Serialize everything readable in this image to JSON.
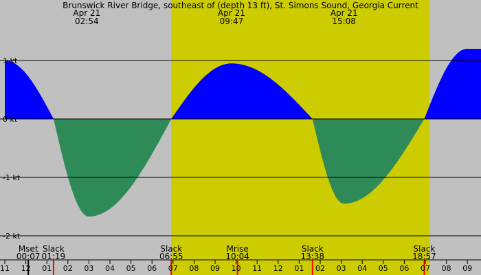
{
  "chart_data": {
    "type": "area",
    "title": "Brunswick River Bridge, southeast of (depth 13 ft), St. Simons Sound, Georgia Current",
    "y_unit": "kt",
    "ylim": [
      -2.05,
      1.05
    ],
    "y_ticks": [
      {
        "value": 1,
        "label": "1 kt"
      },
      {
        "value": 0,
        "label": "0 kt"
      },
      {
        "value": -1,
        "label": "-1 kt"
      },
      {
        "value": -2,
        "label": "-2 kt"
      }
    ],
    "x_axis": {
      "unit": "hour of day",
      "start": 23.0,
      "end": 33.7,
      "tick_labels": [
        "11",
        "12",
        "01",
        "02",
        "03",
        "04",
        "05",
        "06",
        "07",
        "08",
        "09",
        "10",
        "11",
        "12",
        "01",
        "02",
        "03",
        "04",
        "05",
        "06",
        "07",
        "08",
        "09"
      ]
    },
    "daylight": {
      "start": 30.917,
      "end": 43.2,
      "color": "#cccc00"
    },
    "night_color": "#c0c0c0",
    "flood_color": "#0000ff",
    "ebb_color": "#2e8b57",
    "current_curve": [
      {
        "t": 23.0,
        "v": 1.0
      },
      {
        "t": 25.32,
        "v": 0.0
      },
      {
        "t": 27.0,
        "v": -1.67
      },
      {
        "t": 30.917,
        "v": 0.0
      },
      {
        "t": 33.783,
        "v": 0.95
      },
      {
        "t": 37.633,
        "v": 0.0
      },
      {
        "t": 39.13,
        "v": -1.45
      },
      {
        "t": 42.95,
        "v": 0.0
      },
      {
        "t": 45.0,
        "v": 1.2
      }
    ],
    "top_events": [
      {
        "t": 26.9,
        "date": "Apr 21",
        "time": "02:54"
      },
      {
        "t": 33.783,
        "date": "Apr 21",
        "time": "09:47"
      },
      {
        "t": 39.133,
        "date": "Apr 21",
        "time": "15:08"
      }
    ],
    "bottom_events": [
      {
        "t": 24.117,
        "label": "Mset",
        "time": "00:07",
        "mark_color": "#000000"
      },
      {
        "t": 25.317,
        "label": "Slack",
        "time": "01:19",
        "mark_color": "#ff0000"
      },
      {
        "t": 30.917,
        "label": "Slack",
        "time": "06:55",
        "mark_color": "#ff0000"
      },
      {
        "t": 34.067,
        "label": "Mrise",
        "time": "10:04",
        "mark_color": "#ff0000"
      },
      {
        "t": 37.633,
        "label": "Slack",
        "time": "13:38",
        "mark_color": "#ff0000"
      },
      {
        "t": 42.95,
        "label": "Slack",
        "time": "18:57",
        "mark_color": "#ff0000"
      }
    ]
  }
}
